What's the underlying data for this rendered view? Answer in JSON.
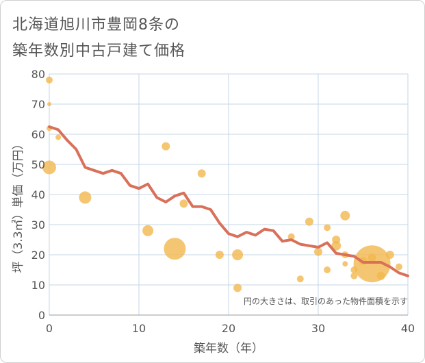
{
  "title": {
    "line1": "北海道旭川市豊岡8条の",
    "line2": "築年数別中古戸建て価格"
  },
  "chart_data": {
    "type": "scatter",
    "xlabel": "築年数（年）",
    "ylabel": "坪（3.3㎡）単価（万円）",
    "xlim": [
      0,
      40
    ],
    "ylim": [
      0,
      80
    ],
    "xticks": [
      0,
      10,
      20,
      30,
      40
    ],
    "yticks": [
      0,
      10,
      20,
      30,
      40,
      50,
      60,
      70,
      80
    ],
    "grid": true,
    "annotation": "円の大きさは、取引のあった物件面積を示す",
    "colors": {
      "bubble": "#f2b84f",
      "line": "#d9705a",
      "grid": "#c5d5e5",
      "text": "#555555"
    },
    "scatter_points": [
      {
        "x": 0,
        "y": 78,
        "size": 5
      },
      {
        "x": 0,
        "y": 70,
        "size": 3
      },
      {
        "x": 0,
        "y": 62,
        "size": 4
      },
      {
        "x": 0,
        "y": 49,
        "size": 10
      },
      {
        "x": 1,
        "y": 59,
        "size": 4
      },
      {
        "x": 4,
        "y": 39,
        "size": 9
      },
      {
        "x": 11,
        "y": 28,
        "size": 8
      },
      {
        "x": 13,
        "y": 56,
        "size": 6
      },
      {
        "x": 14,
        "y": 22,
        "size": 16
      },
      {
        "x": 15,
        "y": 37,
        "size": 6
      },
      {
        "x": 17,
        "y": 47,
        "size": 6
      },
      {
        "x": 19,
        "y": 20,
        "size": 6
      },
      {
        "x": 21,
        "y": 20,
        "size": 8
      },
      {
        "x": 21,
        "y": 9,
        "size": 6
      },
      {
        "x": 27,
        "y": 26,
        "size": 5
      },
      {
        "x": 28,
        "y": 12,
        "size": 5
      },
      {
        "x": 29,
        "y": 31,
        "size": 6
      },
      {
        "x": 30,
        "y": 21,
        "size": 6
      },
      {
        "x": 31,
        "y": 29,
        "size": 5
      },
      {
        "x": 31,
        "y": 15,
        "size": 5
      },
      {
        "x": 32,
        "y": 25,
        "size": 6
      },
      {
        "x": 32,
        "y": 23,
        "size": 7
      },
      {
        "x": 33,
        "y": 33,
        "size": 7
      },
      {
        "x": 33,
        "y": 20,
        "size": 5
      },
      {
        "x": 33,
        "y": 17,
        "size": 4
      },
      {
        "x": 34,
        "y": 15,
        "size": 5
      },
      {
        "x": 34,
        "y": 13,
        "size": 5
      },
      {
        "x": 35,
        "y": 18,
        "size": 6
      },
      {
        "x": 36,
        "y": 17,
        "size": 27
      },
      {
        "x": 36,
        "y": 19,
        "size": 6
      },
      {
        "x": 37,
        "y": 13,
        "size": 6
      },
      {
        "x": 38,
        "y": 20,
        "size": 6
      },
      {
        "x": 39,
        "y": 16,
        "size": 5
      }
    ],
    "trend": {
      "x": [
        0,
        1,
        2,
        3,
        4,
        5,
        6,
        7,
        8,
        9,
        10,
        11,
        12,
        13,
        14,
        15,
        16,
        17,
        18,
        19,
        20,
        21,
        22,
        23,
        24,
        25,
        26,
        27,
        28,
        29,
        30,
        31,
        32,
        33,
        34,
        35,
        36,
        37,
        38,
        39,
        40
      ],
      "y": [
        62.5,
        61.5,
        58,
        55,
        49,
        48,
        47,
        48,
        47,
        43,
        42,
        43.5,
        39,
        37.5,
        39.5,
        40.5,
        36,
        36,
        35,
        30.5,
        27,
        26,
        27.5,
        26.5,
        28.5,
        28,
        24.5,
        25,
        23.5,
        23,
        22.5,
        24,
        20.5,
        20,
        19.5,
        17.5,
        17.5,
        17.5,
        16,
        14,
        13
      ]
    }
  }
}
